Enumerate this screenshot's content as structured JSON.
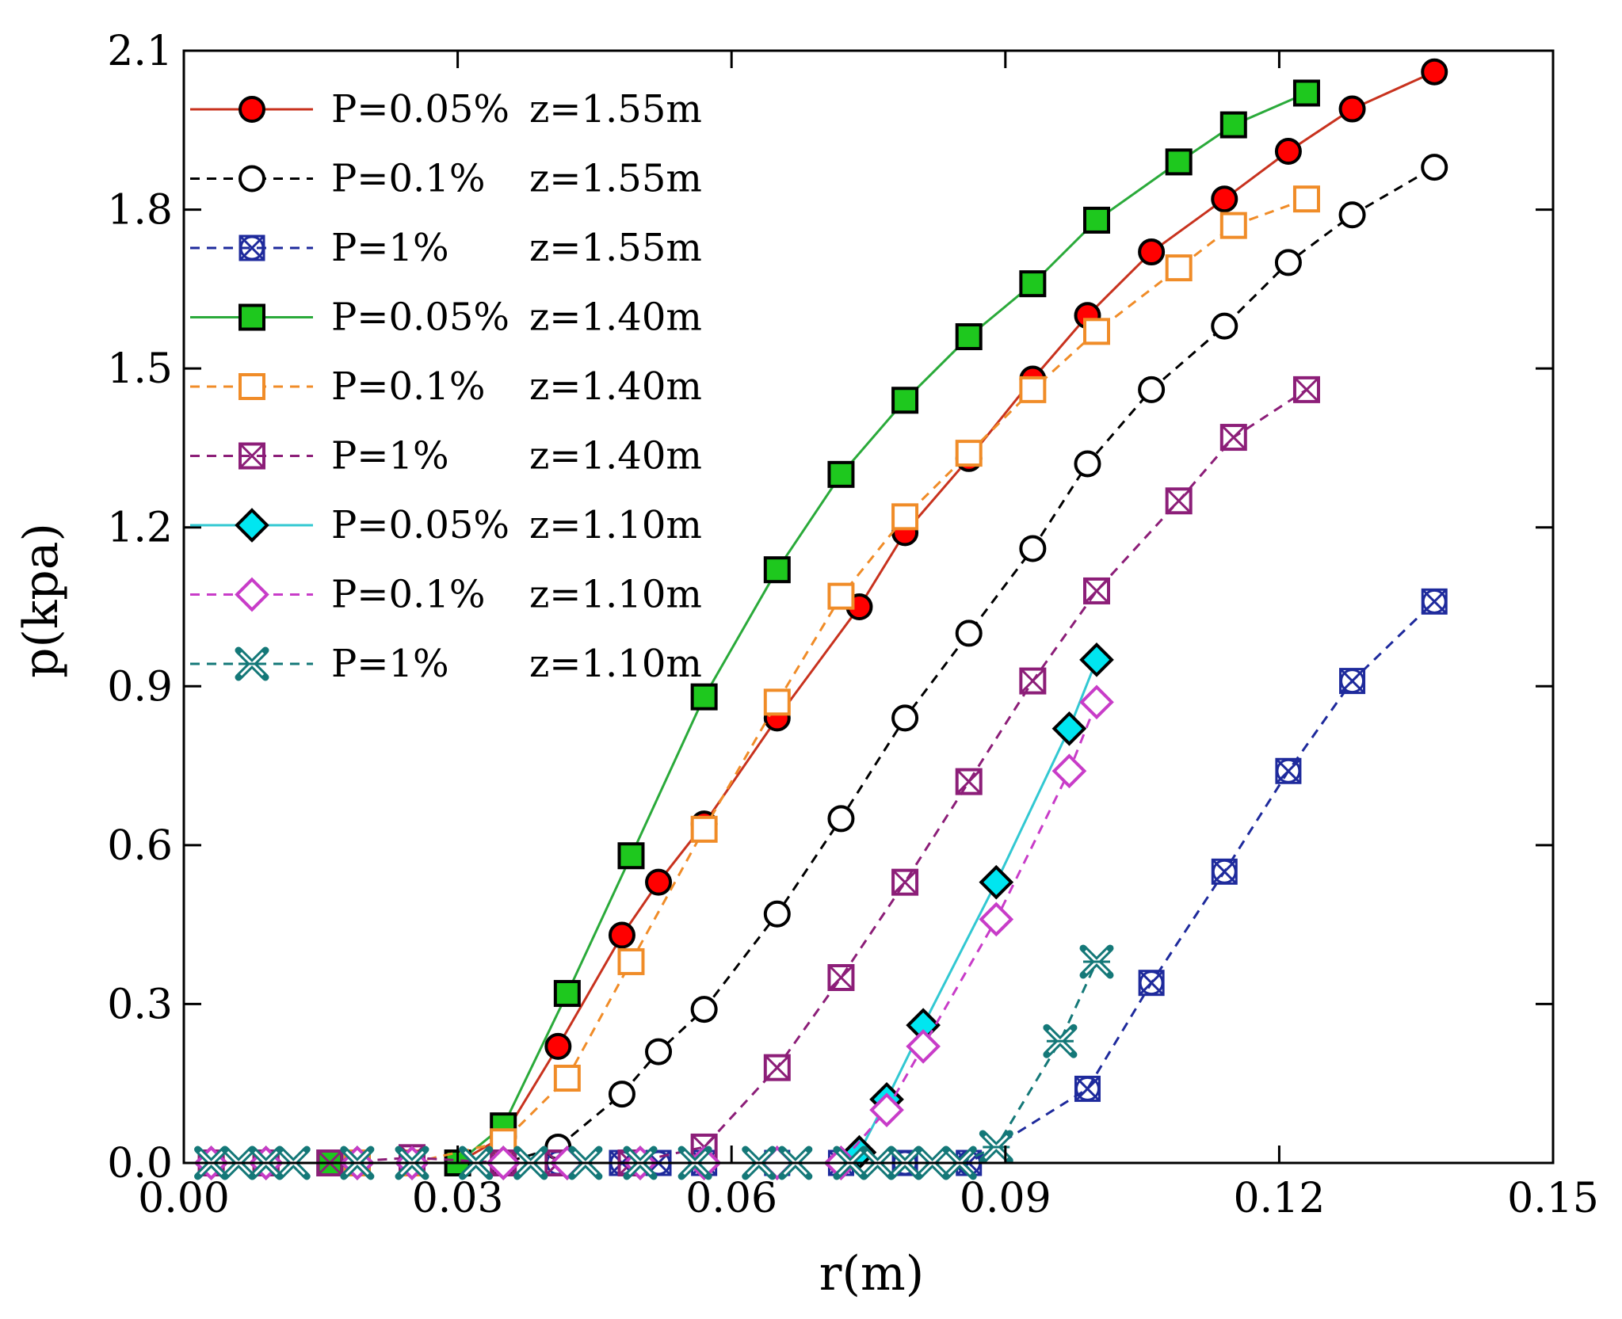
{
  "chart_data": {
    "type": "line",
    "title": "",
    "xlabel": "r(m)",
    "ylabel": "p(kpa)",
    "xlim": [
      0,
      0.15
    ],
    "ylim": [
      0,
      2.1
    ],
    "grid": false,
    "legend_position": "top-left",
    "x_ticks": [
      0.0,
      0.03,
      0.06,
      0.09,
      0.12,
      0.15
    ],
    "x_tick_labels": [
      "0.00",
      "0.03",
      "0.06",
      "0.09",
      "0.12",
      "0.15"
    ],
    "y_ticks": [
      0.0,
      0.3,
      0.6,
      0.9,
      1.2,
      1.5,
      1.8,
      2.1
    ],
    "y_tick_labels": [
      "0.0",
      "0.3",
      "0.6",
      "0.9",
      "1.2",
      "1.5",
      "1.8",
      "2.1"
    ],
    "series": [
      {
        "name": "P=0.05%",
        "label_p": "P=0.05%",
        "label_z": "z=1.55m",
        "marker": "circle",
        "line_color": "#c8321e",
        "fill": "#ff0000",
        "dashed": false,
        "x": [
          0.003,
          0.009,
          0.016,
          0.019,
          0.025,
          0.03,
          0.035,
          0.041,
          0.048,
          0.052,
          0.057,
          0.065,
          0.074,
          0.079,
          0.086,
          0.093,
          0.099,
          0.106,
          0.114,
          0.121,
          0.128,
          0.137
        ],
        "y": [
          0.0,
          0.0,
          0.0,
          0.0,
          0.0,
          0.0,
          0.05,
          0.22,
          0.43,
          0.53,
          0.64,
          0.84,
          1.05,
          1.19,
          1.33,
          1.48,
          1.6,
          1.72,
          1.82,
          1.91,
          1.99,
          2.06
        ]
      },
      {
        "name": "P=0.1%",
        "label_p": "P=0.1%",
        "label_z": "z=1.55m",
        "marker": "circle-open",
        "line_color": "#000000",
        "fill": "#ffffff",
        "dashed": true,
        "x": [
          0.003,
          0.009,
          0.019,
          0.025,
          0.035,
          0.041,
          0.048,
          0.052,
          0.057,
          0.065,
          0.072,
          0.079,
          0.086,
          0.093,
          0.099,
          0.106,
          0.114,
          0.121,
          0.128,
          0.137
        ],
        "y": [
          0.0,
          0.0,
          0.0,
          0.0,
          0.0,
          0.03,
          0.13,
          0.21,
          0.29,
          0.47,
          0.65,
          0.84,
          1.0,
          1.16,
          1.32,
          1.46,
          1.58,
          1.7,
          1.79,
          1.88
        ]
      },
      {
        "name": "P=1%",
        "label_p": "P=1%",
        "label_z": "z=1.55m",
        "marker": "xbox-circle",
        "line_color": "#1e2a9c",
        "fill": "none",
        "dashed": true,
        "x": [
          0.003,
          0.009,
          0.016,
          0.025,
          0.035,
          0.041,
          0.048,
          0.052,
          0.057,
          0.065,
          0.072,
          0.079,
          0.086,
          0.099,
          0.106,
          0.114,
          0.121,
          0.128,
          0.137
        ],
        "y": [
          0.0,
          0.0,
          0.0,
          0.0,
          0.0,
          0.0,
          0.0,
          0.0,
          0.0,
          0.0,
          0.0,
          0.0,
          0.0,
          0.14,
          0.34,
          0.55,
          0.74,
          0.91,
          1.06
        ]
      },
      {
        "name": "P=0.05%",
        "label_p": "P=0.05%",
        "label_z": "z=1.40m",
        "marker": "square",
        "line_color": "#2aaa3a",
        "fill": "#1ec81e",
        "dashed": false,
        "x": [
          0.003,
          0.009,
          0.016,
          0.019,
          0.025,
          0.03,
          0.035,
          0.042,
          0.049,
          0.057,
          0.065,
          0.072,
          0.079,
          0.086,
          0.093,
          0.1,
          0.109,
          0.115,
          0.123
        ],
        "y": [
          0.0,
          0.0,
          0.0,
          0.0,
          0.0,
          0.0,
          0.07,
          0.32,
          0.58,
          0.88,
          1.12,
          1.3,
          1.44,
          1.56,
          1.66,
          1.78,
          1.89,
          1.96,
          2.02
        ]
      },
      {
        "name": "P=0.1%",
        "label_p": "P=0.1%",
        "label_z": "z=1.40m",
        "marker": "square-open",
        "line_color": "#f08c28",
        "fill": "#ffffff",
        "dashed": true,
        "x": [
          0.003,
          0.009,
          0.019,
          0.025,
          0.035,
          0.042,
          0.049,
          0.057,
          0.065,
          0.072,
          0.079,
          0.086,
          0.093,
          0.1,
          0.109,
          0.115,
          0.123
        ],
        "y": [
          0.0,
          0.0,
          0.0,
          0.0,
          0.04,
          0.16,
          0.38,
          0.63,
          0.87,
          1.07,
          1.22,
          1.34,
          1.46,
          1.57,
          1.69,
          1.77,
          1.82
        ]
      },
      {
        "name": "P=1%",
        "label_p": "P=1%",
        "label_z": "z=1.40m",
        "marker": "xbox-square",
        "line_color": "#8c1e78",
        "fill": "none",
        "dashed": true,
        "x": [
          0.003,
          0.009,
          0.016,
          0.025,
          0.035,
          0.041,
          0.049,
          0.057,
          0.065,
          0.072,
          0.079,
          0.086,
          0.093,
          0.1,
          0.109,
          0.115,
          0.123
        ],
        "y": [
          0.0,
          0.0,
          0.0,
          0.01,
          0.0,
          0.0,
          0.0,
          0.03,
          0.18,
          0.35,
          0.53,
          0.72,
          0.91,
          1.08,
          1.25,
          1.37,
          1.46
        ]
      },
      {
        "name": "P=0.05%",
        "label_p": "P=0.05%",
        "label_z": "z=1.10m",
        "marker": "diamond",
        "line_color": "#32c8d2",
        "fill": "#00e6f0",
        "dashed": false,
        "x": [
          0.003,
          0.009,
          0.019,
          0.025,
          0.035,
          0.042,
          0.05,
          0.057,
          0.065,
          0.072,
          0.074,
          0.077,
          0.081,
          0.089,
          0.097,
          0.1
        ],
        "y": [
          0.0,
          0.0,
          0.0,
          0.0,
          0.0,
          0.0,
          0.0,
          0.0,
          0.0,
          0.0,
          0.02,
          0.12,
          0.26,
          0.53,
          0.82,
          0.95
        ]
      },
      {
        "name": "P=0.1%",
        "label_p": "P=0.1%",
        "label_z": "z=1.10m",
        "marker": "diamond-open",
        "line_color": "#c83cc8",
        "fill": "#ffffff",
        "dashed": true,
        "x": [
          0.003,
          0.009,
          0.019,
          0.025,
          0.035,
          0.042,
          0.05,
          0.057,
          0.065,
          0.072,
          0.077,
          0.081,
          0.089,
          0.097,
          0.1
        ],
        "y": [
          0.0,
          0.0,
          0.0,
          0.0,
          0.0,
          0.0,
          0.0,
          0.0,
          0.0,
          0.0,
          0.1,
          0.22,
          0.46,
          0.74,
          0.87
        ]
      },
      {
        "name": "P=1%",
        "label_p": "P=1%",
        "label_z": "z=1.10m",
        "marker": "star",
        "line_color": "#147878",
        "fill": "none",
        "dashed": true,
        "x": [
          0.003,
          0.006,
          0.009,
          0.012,
          0.019,
          0.025,
          0.032,
          0.038,
          0.044,
          0.05,
          0.056,
          0.063,
          0.067,
          0.073,
          0.076,
          0.079,
          0.082,
          0.085,
          0.089,
          0.096,
          0.1
        ],
        "y": [
          0.0,
          0.0,
          0.0,
          0.0,
          0.0,
          0.0,
          0.0,
          0.0,
          0.0,
          0.0,
          0.0,
          0.0,
          0.0,
          0.0,
          0.0,
          0.0,
          0.0,
          0.0,
          0.03,
          0.23,
          0.38
        ]
      }
    ]
  }
}
